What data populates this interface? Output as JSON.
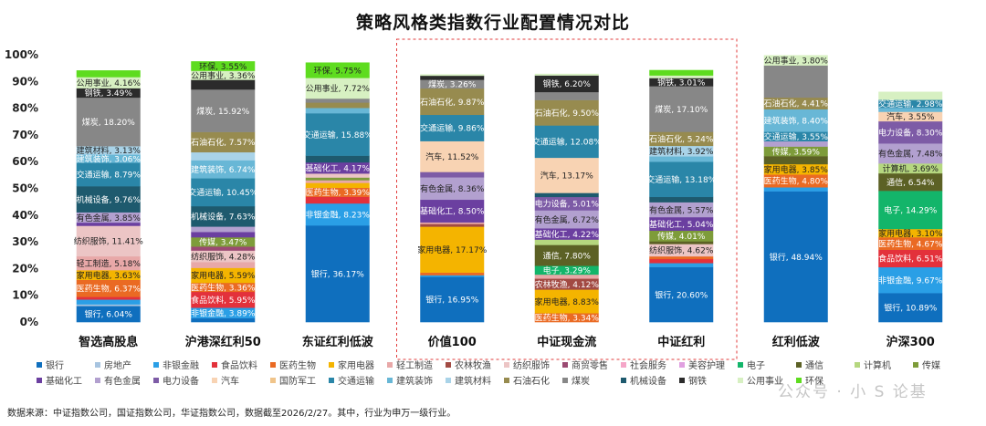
{
  "chart_data": {
    "type": "stacked-bar-100",
    "title": "策略风格类指数行业配置情况对比",
    "ylim": [
      0,
      100
    ],
    "yticks": [
      "0%",
      "10%",
      "20%",
      "30%",
      "40%",
      "50%",
      "60%",
      "70%",
      "80%",
      "90%",
      "100%"
    ],
    "categories": [
      "智选高股息",
      "沪港深红利50",
      "东证红利低波",
      "价值100",
      "中证现金流",
      "中证红利",
      "红利低波",
      "沪深300"
    ],
    "highlight_categories": [
      "价值100",
      "中证现金流",
      "中证红利"
    ],
    "industries": [
      {
        "name": "银行",
        "color": "#0f6fbe"
      },
      {
        "name": "房地产",
        "color": "#a7c4e0"
      },
      {
        "name": "非银金融",
        "color": "#2a9fe6"
      },
      {
        "name": "食品饮料",
        "color": "#e3313b"
      },
      {
        "name": "医药生物",
        "color": "#ea6a23"
      },
      {
        "name": "家用电器",
        "color": "#f4b400"
      },
      {
        "name": "轻工制造",
        "color": "#e8a8a8"
      },
      {
        "name": "农林牧渔",
        "color": "#a24a43"
      },
      {
        "name": "纺织服饰",
        "color": "#ecc5c5"
      },
      {
        "name": "商贸零售",
        "color": "#9b4a72"
      },
      {
        "name": "社会服务",
        "color": "#f5a6c8"
      },
      {
        "name": "美容护理",
        "color": "#e0a0e0"
      },
      {
        "name": "电子",
        "color": "#13b56a"
      },
      {
        "name": "通信",
        "color": "#5c6125"
      },
      {
        "name": "计算机",
        "color": "#b5d77f"
      },
      {
        "name": "传媒",
        "color": "#7e9c3a"
      },
      {
        "name": "基础化工",
        "color": "#6b3fa0"
      },
      {
        "name": "有色金属",
        "color": "#b2a0cf"
      },
      {
        "name": "电力设备",
        "color": "#7d5ba6"
      },
      {
        "name": "汽车",
        "color": "#f8d3b3"
      },
      {
        "name": "国防军工",
        "color": "#f0c48a"
      },
      {
        "name": "交通运输",
        "color": "#2a86a8"
      },
      {
        "name": "建筑装饰",
        "color": "#68b7d6"
      },
      {
        "name": "建筑材料",
        "color": "#a9d3e8"
      },
      {
        "name": "石油石化",
        "color": "#978b4f"
      },
      {
        "name": "煤炭",
        "color": "#878787"
      },
      {
        "name": "机械设备",
        "color": "#1e5a6e"
      },
      {
        "name": "钢铁",
        "color": "#2b2b2b"
      },
      {
        "name": "公用事业",
        "color": "#d7f0c2"
      },
      {
        "name": "环保",
        "color": "#5edc1f"
      }
    ],
    "series": [
      {
        "category": "智选高股息",
        "segments": [
          {
            "industry": "银行",
            "value": 6.04,
            "label": "银行, 6.04%"
          },
          {
            "industry": "房地产",
            "value": 0.6
          },
          {
            "industry": "非银金融",
            "value": 1.8
          },
          {
            "industry": "食品饮料",
            "value": 1.0
          },
          {
            "industry": "医药生物",
            "value": 6.37,
            "label": "医药生物, 6.37%"
          },
          {
            "industry": "家用电器",
            "value": 3.63,
            "label": "家用电器, 3.63%"
          },
          {
            "industry": "轻工制造",
            "value": 5.18,
            "label": "轻工制造, 5.18%"
          },
          {
            "industry": "纺织服饰",
            "value": 11.41,
            "label": "纺织服饰, 11.41%"
          },
          {
            "industry": "基础化工",
            "value": 1.2
          },
          {
            "industry": "有色金属",
            "value": 3.85,
            "label": "有色金属, 3.85%"
          },
          {
            "industry": "机械设备",
            "value": 9.76,
            "label": "机械设备, 9.76%"
          },
          {
            "industry": "交通运输",
            "value": 8.79,
            "label": "交通运输, 8.79%"
          },
          {
            "industry": "建筑装饰",
            "value": 3.06,
            "label": "建筑装饰, 3.06%"
          },
          {
            "industry": "建筑材料",
            "value": 3.13,
            "label": "建筑材料, 3.13%"
          },
          {
            "industry": "煤炭",
            "value": 18.2,
            "label": "煤炭, 18.20%"
          },
          {
            "industry": "钢铁",
            "value": 3.49,
            "label": "钢铁, 3.49%"
          },
          {
            "industry": "公用事业",
            "value": 4.16,
            "label": "公用事业, 4.16%"
          },
          {
            "industry": "环保",
            "value": 2.5
          }
        ]
      },
      {
        "category": "沪港深红利50",
        "segments": [
          {
            "industry": "银行",
            "value": 1.5
          },
          {
            "industry": "非银金融",
            "value": 3.89,
            "label": "非银金融, 3.89%"
          },
          {
            "industry": "食品饮料",
            "value": 5.95,
            "label": "食品饮料, 5.95%"
          },
          {
            "industry": "医药生物",
            "value": 3.36,
            "label": "医药生物, 3.36%"
          },
          {
            "industry": "家用电器",
            "value": 5.59,
            "label": "家用电器, 5.59%"
          },
          {
            "industry": "轻工制造",
            "value": 2.2
          },
          {
            "industry": "纺织服饰",
            "value": 4.28,
            "label": "纺织服饰, 4.28%"
          },
          {
            "industry": "商贸零售",
            "value": 1.5
          },
          {
            "industry": "传媒",
            "value": 3.47,
            "label": "传媒, 3.47%"
          },
          {
            "industry": "基础化工",
            "value": 2.0
          },
          {
            "industry": "有色金属",
            "value": 2.0
          },
          {
            "industry": "机械设备",
            "value": 7.63,
            "label": "机械设备, 7.63%"
          },
          {
            "industry": "交通运输",
            "value": 10.45,
            "label": "交通运输, 10.45%"
          },
          {
            "industry": "建筑装饰",
            "value": 6.74,
            "label": "建筑装饰, 6.74%"
          },
          {
            "industry": "建筑材料",
            "value": 3.0
          },
          {
            "industry": "石油石化",
            "value": 7.57,
            "label": "石油石化, 7.57%"
          },
          {
            "industry": "煤炭",
            "value": 15.92,
            "label": "煤炭, 15.92%"
          },
          {
            "industry": "钢铁",
            "value": 3.6
          },
          {
            "industry": "公用事业",
            "value": 3.36,
            "label": "公用事业, 3.36%"
          },
          {
            "industry": "环保",
            "value": 3.55,
            "label": "环保, 3.55%"
          }
        ]
      },
      {
        "category": "东证红利低波",
        "segments": [
          {
            "industry": "银行",
            "value": 36.17,
            "label": "银行, 36.17%"
          },
          {
            "industry": "非银金融",
            "value": 8.23,
            "label": "非银金融, 8.23%"
          },
          {
            "industry": "食品饮料",
            "value": 2.5
          },
          {
            "industry": "医药生物",
            "value": 3.39,
            "label": "医药生物, 3.39%"
          },
          {
            "industry": "家用电器",
            "value": 1.8
          },
          {
            "industry": "轻工制造",
            "value": 1.0
          },
          {
            "industry": "传媒",
            "value": 1.0
          },
          {
            "industry": "纺织服饰",
            "value": 1.5
          },
          {
            "industry": "基础化工",
            "value": 4.17,
            "label": "基础化工, 4.17%"
          },
          {
            "industry": "机械设备",
            "value": 2.5
          },
          {
            "industry": "交通运输",
            "value": 15.88,
            "label": "交通运输, 15.88%"
          },
          {
            "industry": "建筑装饰",
            "value": 2.0
          },
          {
            "industry": "石油石化",
            "value": 2.0
          },
          {
            "industry": "煤炭",
            "value": 1.5
          },
          {
            "industry": "公用事业",
            "value": 7.72,
            "label": "公用事业, 7.72%"
          },
          {
            "industry": "环保",
            "value": 5.75,
            "label": "环保, 5.75%"
          }
        ]
      },
      {
        "category": "价值100",
        "segments": [
          {
            "industry": "银行",
            "value": 16.95,
            "label": "银行, 16.95%"
          },
          {
            "industry": "非银金融",
            "value": 0.6
          },
          {
            "industry": "医药生物",
            "value": 1.0
          },
          {
            "industry": "家用电器",
            "value": 17.17,
            "label": "家用电器, 17.17%"
          },
          {
            "industry": "农林牧渔",
            "value": 1.0
          },
          {
            "industry": "轻工制造",
            "value": 0.6
          },
          {
            "industry": "基础化工",
            "value": 8.5,
            "label": "基础化工, 8.50%"
          },
          {
            "industry": "有色金属",
            "value": 8.36,
            "label": "有色金属, 8.36%"
          },
          {
            "industry": "电力设备",
            "value": 2.0
          },
          {
            "industry": "汽车",
            "value": 11.52,
            "label": "汽车, 11.52%"
          },
          {
            "industry": "交通运输",
            "value": 9.86,
            "label": "交通运输, 9.86%"
          },
          {
            "industry": "石油石化",
            "value": 9.87,
            "label": "石油石化, 9.87%"
          },
          {
            "industry": "煤炭",
            "value": 3.26,
            "label": "煤炭, 3.26%"
          },
          {
            "industry": "钢铁",
            "value": 1.5
          },
          {
            "industry": "公用事业",
            "value": 0.5
          }
        ]
      },
      {
        "category": "中证现金流",
        "segments": [
          {
            "industry": "医药生物",
            "value": 3.34,
            "label": "医药生物, 3.34%"
          },
          {
            "industry": "家用电器",
            "value": 8.83,
            "label": "家用电器, 8.83%"
          },
          {
            "industry": "农林牧渔",
            "value": 4.12,
            "label": "农林牧渔, 4.12%"
          },
          {
            "industry": "轻工制造",
            "value": 1.5
          },
          {
            "industry": "电子",
            "value": 3.29,
            "label": "电子, 3.29%"
          },
          {
            "industry": "通信",
            "value": 7.8,
            "label": "通信, 7.80%"
          },
          {
            "industry": "计算机",
            "value": 2.0
          },
          {
            "industry": "基础化工",
            "value": 4.22,
            "label": "基础化工, 4.22%"
          },
          {
            "industry": "有色金属",
            "value": 6.72,
            "label": "有色金属, 6.72%"
          },
          {
            "industry": "电力设备",
            "value": 5.01,
            "label": "电力设备, 5.01%"
          },
          {
            "industry": "机械设备",
            "value": 1.5
          },
          {
            "industry": "汽车",
            "value": 13.17,
            "label": "汽车, 13.17%"
          },
          {
            "industry": "交通运输",
            "value": 12.08,
            "label": "交通运输, 12.08%"
          },
          {
            "industry": "石油石化",
            "value": 9.5,
            "label": "石油石化, 9.50%"
          },
          {
            "industry": "煤炭",
            "value": 3.0
          },
          {
            "industry": "钢铁",
            "value": 6.2,
            "label": "钢铁, 6.20%"
          },
          {
            "industry": "公用事业",
            "value": 0.6
          }
        ]
      },
      {
        "category": "中证红利",
        "segments": [
          {
            "industry": "银行",
            "value": 20.6,
            "label": "银行, 20.60%"
          },
          {
            "industry": "非银金融",
            "value": 1.5
          },
          {
            "industry": "食品饮料",
            "value": 1.5
          },
          {
            "industry": "医药生物",
            "value": 1.0
          },
          {
            "industry": "纺织服饰",
            "value": 4.62,
            "label": "纺织服饰, 4.62%"
          },
          {
            "industry": "通信",
            "value": 1.0
          },
          {
            "industry": "传媒",
            "value": 4.01,
            "label": "传媒, 4.01%"
          },
          {
            "industry": "基础化工",
            "value": 5.04,
            "label": "基础化工, 5.04%"
          },
          {
            "industry": "有色金属",
            "value": 5.57,
            "label": "有色金属, 5.57%"
          },
          {
            "industry": "机械设备",
            "value": 2.0
          },
          {
            "industry": "交通运输",
            "value": 13.18,
            "label": "交通运输, 13.18%"
          },
          {
            "industry": "建筑装饰",
            "value": 2.0
          },
          {
            "industry": "建筑材料",
            "value": 3.92,
            "label": "建筑材料, 3.92%"
          },
          {
            "industry": "石油石化",
            "value": 5.24,
            "label": "石油石化, 5.24%"
          },
          {
            "industry": "煤炭",
            "value": 17.1,
            "label": "煤炭, 17.10%"
          },
          {
            "industry": "钢铁",
            "value": 3.01,
            "label": "钢铁, 3.01%"
          },
          {
            "industry": "公用事业",
            "value": 1.0
          },
          {
            "industry": "环保",
            "value": 2.0
          }
        ]
      },
      {
        "category": "红利低波",
        "segments": [
          {
            "industry": "银行",
            "value": 48.94,
            "label": "银行, 48.94%"
          },
          {
            "industry": "非银金融",
            "value": 1.5
          },
          {
            "industry": "医药生物",
            "value": 4.8,
            "label": "医药生物, 4.80%"
          },
          {
            "industry": "家用电器",
            "value": 3.85,
            "label": "家用电器, 3.85%"
          },
          {
            "industry": "通信",
            "value": 3.0
          },
          {
            "industry": "传媒",
            "value": 3.59,
            "label": "传媒, 3.59%"
          },
          {
            "industry": "有色金属",
            "value": 2.0
          },
          {
            "industry": "交通运输",
            "value": 3.55,
            "label": "交通运输, 3.55%"
          },
          {
            "industry": "建筑装饰",
            "value": 8.4,
            "label": "建筑装饰, 8.40%"
          },
          {
            "industry": "石油石化",
            "value": 4.41,
            "label": "石油石化, 4.41%"
          },
          {
            "industry": "煤炭",
            "value": 12.0
          },
          {
            "industry": "公用事业",
            "value": 3.8,
            "label": "公用事业, 3.80%"
          }
        ]
      },
      {
        "category": "沪深300",
        "segments": [
          {
            "industry": "银行",
            "value": 10.89,
            "label": "银行, 10.89%"
          },
          {
            "industry": "非银金融",
            "value": 9.67,
            "label": "非银金融, 9.67%"
          },
          {
            "industry": "食品饮料",
            "value": 6.51,
            "label": "食品饮料, 6.51%"
          },
          {
            "industry": "医药生物",
            "value": 4.67,
            "label": "医药生物, 4.67%"
          },
          {
            "industry": "家用电器",
            "value": 3.1,
            "label": "家用电器, 3.10%"
          },
          {
            "industry": "电子",
            "value": 14.29,
            "label": "电子, 14.29%"
          },
          {
            "industry": "通信",
            "value": 6.54,
            "label": "通信, 6.54%"
          },
          {
            "industry": "计算机",
            "value": 3.69,
            "label": "计算机, 3.69%"
          },
          {
            "industry": "有色金属",
            "value": 7.48,
            "label": "有色金属, 7.48%"
          },
          {
            "industry": "电力设备",
            "value": 8.3,
            "label": "电力设备, 8.30%"
          },
          {
            "industry": "汽车",
            "value": 3.55,
            "label": "汽车, 3.55%"
          },
          {
            "industry": "建筑装饰",
            "value": 1.5
          },
          {
            "industry": "交通运输",
            "value": 2.98,
            "label": "交通运输, 2.98%"
          },
          {
            "industry": "公用事业",
            "value": 3.0
          }
        ]
      }
    ]
  },
  "source_note": "数据来源：中证指数公司，国证指数公司，华证指数公司，数据截至2026/2/27。其中，行业为申万一级行业。",
  "watermark": "公众号 · 小 S 论基"
}
